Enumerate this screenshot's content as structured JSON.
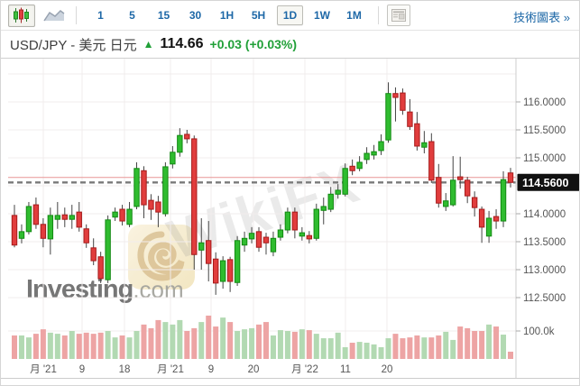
{
  "toolbar": {
    "chart_types": [
      {
        "name": "candlestick-chart",
        "selected": true
      },
      {
        "name": "area-chart",
        "selected": false
      }
    ],
    "timeframes": [
      {
        "label": "1",
        "selected": false
      },
      {
        "label": "5",
        "selected": false
      },
      {
        "label": "15",
        "selected": false
      },
      {
        "label": "30",
        "selected": false
      },
      {
        "label": "1H",
        "selected": false
      },
      {
        "label": "5H",
        "selected": false
      },
      {
        "label": "1D",
        "selected": true
      },
      {
        "label": "1W",
        "selected": false
      },
      {
        "label": "1M",
        "selected": false
      }
    ],
    "tech_chart_link": "技術圖表 »"
  },
  "header": {
    "symbol": "USD/JPY - 美元 日元",
    "direction_arrow": "▲",
    "last_price": "114.66",
    "change": "+0.03 (+0.03%)"
  },
  "watermarks": {
    "brand": "Investing",
    "brand_suffix": ".com",
    "overlay_text": "WikiFX"
  },
  "chart_data": {
    "type": "candlestick",
    "title": "USD/JPY daily candlestick chart with volume",
    "y_axis": {
      "side": "right",
      "ticks": [
        116.0,
        115.5,
        115.0,
        114.0,
        113.5,
        113.0,
        112.5
      ],
      "tick_labels": [
        "116.0000",
        "115.5000",
        "115.0000",
        "114.0000",
        "113.5000",
        "113.0000",
        "112.5000"
      ],
      "grid_levels": [
        116.5,
        116.0,
        115.5,
        115.0,
        114.5,
        114.0,
        113.5,
        113.0,
        112.5
      ],
      "volume_tick_label": "100.0k",
      "volume_tick_value": 100
    },
    "x_axis": {
      "tick_labels": [
        "月 '21",
        "9",
        "18",
        "月 '21",
        "9",
        "20",
        "月 '22",
        "11",
        "20"
      ],
      "tick_x": [
        47,
        90,
        137,
        188,
        233,
        280,
        337,
        382,
        428
      ]
    },
    "last_price_label": "114.5600",
    "prev_close_line": 114.56,
    "current_price_line": 114.65,
    "colors": {
      "up": "#2fbc2f",
      "up_border": "#128a12",
      "down": "#e13d3d",
      "down_border": "#a61b1b",
      "wick": "#444444",
      "vol_up": "#b2d9b2",
      "vol_down": "#eda4a4",
      "grid": "#f1ecec",
      "axis_text": "#555555",
      "prev_close_color": "#7a7a7a",
      "current_price_color": "#e89595",
      "label_bg": "#111111",
      "label_text": "#ffffff"
    },
    "candles_format": [
      "open",
      "high",
      "low",
      "close",
      "volume_k"
    ],
    "candles": [
      [
        113.97,
        114.16,
        113.4,
        113.44,
        84
      ],
      [
        113.56,
        113.81,
        113.47,
        113.68,
        84
      ],
      [
        113.68,
        114.21,
        113.63,
        114.13,
        77
      ],
      [
        114.16,
        114.29,
        113.73,
        113.81,
        90
      ],
      [
        113.81,
        113.92,
        113.4,
        113.56,
        106
      ],
      [
        113.55,
        114.11,
        113.27,
        113.97,
        94
      ],
      [
        113.9,
        114.21,
        113.73,
        113.97,
        90
      ],
      [
        113.98,
        114.11,
        113.76,
        113.9,
        84
      ],
      [
        113.9,
        114.16,
        113.73,
        113.97,
        100
      ],
      [
        114.03,
        114.21,
        113.68,
        113.76,
        90
      ],
      [
        113.73,
        113.81,
        113.39,
        113.48,
        94
      ],
      [
        113.39,
        113.56,
        113.08,
        113.16,
        90
      ],
      [
        113.23,
        113.32,
        112.76,
        112.84,
        94
      ],
      [
        112.82,
        113.97,
        112.76,
        113.89,
        100
      ],
      [
        113.94,
        114.11,
        113.87,
        114.03,
        77
      ],
      [
        114.08,
        114.16,
        113.79,
        113.87,
        84
      ],
      [
        113.81,
        114.21,
        113.76,
        114.08,
        77
      ],
      [
        114.13,
        114.92,
        114.08,
        114.81,
        100
      ],
      [
        114.77,
        114.85,
        113.92,
        114.16,
        123
      ],
      [
        114.24,
        114.35,
        113.89,
        114.08,
        110
      ],
      [
        114.21,
        114.32,
        113.76,
        114.03,
        139
      ],
      [
        114.0,
        114.92,
        113.95,
        114.84,
        132
      ],
      [
        114.89,
        115.21,
        114.81,
        115.1,
        123
      ],
      [
        115.1,
        115.53,
        115.02,
        115.4,
        139
      ],
      [
        115.42,
        115.5,
        115.26,
        115.34,
        100
      ],
      [
        115.34,
        115.4,
        113.0,
        113.27,
        110
      ],
      [
        113.35,
        113.92,
        113.0,
        113.48,
        132
      ],
      [
        113.52,
        113.87,
        112.79,
        113.11,
        155
      ],
      [
        113.19,
        113.31,
        112.55,
        112.76,
        116
      ],
      [
        112.79,
        113.24,
        112.66,
        113.16,
        148
      ],
      [
        113.18,
        113.23,
        112.6,
        112.79,
        132
      ],
      [
        112.77,
        113.6,
        112.71,
        113.52,
        100
      ],
      [
        113.44,
        113.68,
        113.32,
        113.56,
        106
      ],
      [
        113.55,
        113.76,
        113.47,
        113.65,
        110
      ],
      [
        113.68,
        113.76,
        113.32,
        113.4,
        123
      ],
      [
        113.58,
        113.66,
        113.27,
        113.48,
        132
      ],
      [
        113.32,
        113.68,
        113.24,
        113.56,
        84
      ],
      [
        113.58,
        113.81,
        113.52,
        113.71,
        103
      ],
      [
        113.71,
        114.11,
        113.65,
        114.03,
        100
      ],
      [
        114.03,
        114.11,
        113.56,
        113.71,
        97
      ],
      [
        113.6,
        113.76,
        113.52,
        113.66,
        106
      ],
      [
        113.61,
        113.69,
        113.47,
        113.55,
        103
      ],
      [
        113.56,
        114.18,
        113.52,
        114.08,
        90
      ],
      [
        114.06,
        114.29,
        113.81,
        114.13,
        74
      ],
      [
        114.08,
        114.48,
        114.03,
        114.35,
        74
      ],
      [
        114.35,
        114.53,
        114.27,
        114.42,
        94
      ],
      [
        114.35,
        114.9,
        114.31,
        114.81,
        42
      ],
      [
        114.85,
        114.97,
        114.69,
        114.77,
        58
      ],
      [
        114.81,
        115.03,
        114.76,
        114.92,
        61
      ],
      [
        114.97,
        115.19,
        114.89,
        115.08,
        58
      ],
      [
        115.05,
        115.23,
        114.97,
        115.11,
        52
      ],
      [
        115.13,
        115.42,
        115.05,
        115.29,
        42
      ],
      [
        115.32,
        116.35,
        115.27,
        116.15,
        74
      ],
      [
        116.15,
        116.26,
        115.65,
        116.08,
        90
      ],
      [
        116.16,
        116.24,
        115.77,
        115.85,
        74
      ],
      [
        115.82,
        116.05,
        115.5,
        115.56,
        77
      ],
      [
        115.61,
        115.82,
        115.13,
        115.21,
        84
      ],
      [
        115.19,
        115.48,
        115.08,
        115.27,
        77
      ],
      [
        115.29,
        115.44,
        114.55,
        114.6,
        77
      ],
      [
        114.65,
        114.89,
        114.11,
        114.19,
        84
      ],
      [
        114.13,
        114.37,
        114.05,
        114.23,
        97
      ],
      [
        114.16,
        115.03,
        114.13,
        114.6,
        68
      ],
      [
        114.66,
        115.02,
        114.45,
        114.61,
        116
      ],
      [
        114.6,
        114.66,
        114.19,
        114.32,
        110
      ],
      [
        114.29,
        114.4,
        113.95,
        114.11,
        100
      ],
      [
        114.08,
        114.13,
        113.48,
        113.76,
        100
      ],
      [
        113.6,
        114.05,
        113.48,
        113.92,
        123
      ],
      [
        113.95,
        114.08,
        113.73,
        113.87,
        116
      ],
      [
        113.87,
        114.76,
        113.76,
        114.61,
        87
      ],
      [
        114.73,
        114.82,
        114.47,
        114.56,
        26
      ]
    ]
  }
}
